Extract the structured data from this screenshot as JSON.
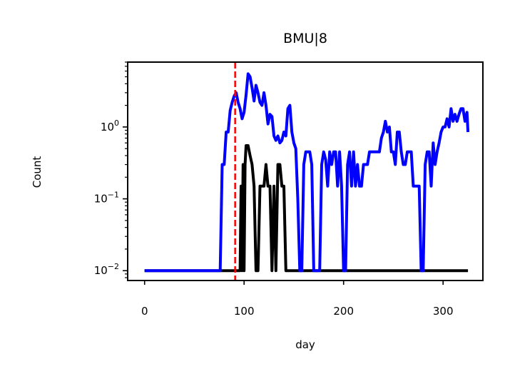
{
  "chart_data": {
    "type": "line",
    "title": "BMU|8",
    "xlabel": "day",
    "ylabel": "Count",
    "xlim": [
      -17,
      340
    ],
    "ylim": [
      0.0073,
      8.0
    ],
    "yscale": "log",
    "grid": false,
    "legend": "none",
    "x_ticks": [
      {
        "value": 0,
        "label": "0"
      },
      {
        "value": 100,
        "label": "100"
      },
      {
        "value": 200,
        "label": "200"
      },
      {
        "value": 300,
        "label": "300"
      }
    ],
    "y_ticks": [
      {
        "value": 0.01,
        "base": "10",
        "exp": "−2"
      },
      {
        "value": 0.1,
        "base": "10",
        "exp": "−1"
      },
      {
        "value": 1,
        "base": "10",
        "exp": "0"
      }
    ],
    "annotations": [
      {
        "type": "vline",
        "x": 91,
        "color": "#ff0000",
        "style": "dashed"
      }
    ],
    "series": [
      {
        "color": "#0000ff",
        "x": [
          0,
          76,
          78,
          80,
          82,
          84,
          86,
          88,
          90,
          92,
          94,
          96,
          98,
          100,
          102,
          104,
          106,
          108,
          110,
          112,
          114,
          116,
          118,
          120,
          122,
          124,
          126,
          128,
          130,
          132,
          134,
          136,
          138,
          140,
          142,
          144,
          146,
          148,
          150,
          152,
          154,
          156,
          158,
          160,
          162,
          164,
          166,
          168,
          170,
          172,
          174,
          176,
          178,
          180,
          182,
          184,
          186,
          188,
          190,
          192,
          194,
          196,
          198,
          200,
          202,
          204,
          206,
          208,
          210,
          212,
          214,
          216,
          218,
          220,
          222,
          224,
          226,
          228,
          230,
          232,
          234,
          236,
          238,
          240,
          242,
          244,
          246,
          248,
          250,
          252,
          254,
          256,
          258,
          260,
          262,
          264,
          266,
          268,
          270,
          272,
          274,
          276,
          278,
          280,
          282,
          284,
          286,
          288,
          290,
          292,
          294,
          296,
          298,
          300,
          302,
          304,
          306,
          308,
          310,
          312,
          314,
          316,
          318,
          320,
          322,
          324,
          325
        ],
        "values": [
          0.01,
          0.01,
          0.3,
          0.3,
          0.85,
          0.85,
          1.7,
          2.2,
          2.7,
          3.0,
          2.2,
          1.8,
          1.3,
          1.6,
          2.8,
          5.5,
          5.0,
          3.5,
          2.3,
          3.8,
          3.0,
          2.2,
          2.0,
          3.0,
          2.0,
          1.1,
          1.5,
          1.4,
          0.75,
          0.65,
          0.75,
          0.6,
          0.65,
          0.85,
          0.75,
          1.8,
          2.0,
          0.85,
          0.6,
          0.5,
          0.1,
          0.01,
          0.01,
          0.3,
          0.45,
          0.45,
          0.45,
          0.3,
          0.01,
          0.01,
          0.01,
          0.01,
          0.3,
          0.45,
          0.35,
          0.15,
          0.45,
          0.3,
          0.45,
          0.45,
          0.15,
          0.45,
          0.15,
          0.01,
          0.01,
          0.3,
          0.45,
          0.15,
          0.45,
          0.15,
          0.3,
          0.15,
          0.15,
          0.3,
          0.3,
          0.3,
          0.45,
          0.45,
          0.45,
          0.45,
          0.45,
          0.45,
          0.7,
          0.85,
          1.2,
          0.85,
          1.0,
          0.45,
          0.45,
          0.3,
          0.85,
          0.85,
          0.45,
          0.3,
          0.3,
          0.45,
          0.45,
          0.45,
          0.15,
          0.15,
          0.15,
          0.15,
          0.01,
          0.01,
          0.3,
          0.45,
          0.45,
          0.15,
          0.6,
          0.3,
          0.45,
          0.6,
          0.85,
          1.0,
          1.0,
          1.3,
          1.0,
          1.8,
          1.2,
          1.5,
          1.2,
          1.5,
          1.8,
          1.8,
          1.2,
          1.6,
          0.85
        ]
      },
      {
        "color": "#000000",
        "x": [
          0,
          96,
          97,
          98,
          99,
          100,
          101,
          102,
          104,
          106,
          108,
          110,
          112,
          114,
          116,
          118,
          120,
          122,
          124,
          126,
          128,
          130,
          132,
          134,
          136,
          138,
          140,
          142,
          144,
          325
        ],
        "values": [
          0.01,
          0.01,
          0.15,
          0.01,
          0.3,
          0.01,
          0.3,
          0.55,
          0.55,
          0.4,
          0.3,
          0.15,
          0.01,
          0.01,
          0.15,
          0.15,
          0.15,
          0.3,
          0.15,
          0.15,
          0.01,
          0.15,
          0.01,
          0.3,
          0.3,
          0.15,
          0.15,
          0.01,
          0.01,
          0.01
        ]
      }
    ]
  }
}
